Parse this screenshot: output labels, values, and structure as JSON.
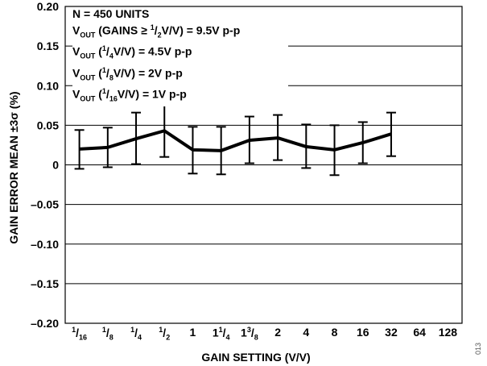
{
  "chart_data": {
    "type": "line",
    "ylabel": "GAIN ERROR MEAN ±3σ (%)",
    "xlabel": "GAIN SETTING (V/V)",
    "ylim": [
      -0.2,
      0.2
    ],
    "yticks": [
      "0.20",
      "0.15",
      "0.10",
      "0.05",
      "0",
      "–0.05",
      "–0.10",
      "–0.15",
      "–0.20"
    ],
    "categories": [
      {
        "num": "1",
        "den": "16"
      },
      {
        "num": "1",
        "den": "8"
      },
      {
        "num": "1",
        "den": "4"
      },
      {
        "num": "1",
        "den": "2"
      },
      {
        "whole": "1"
      },
      {
        "whole": "1",
        "num": "1",
        "den": "4"
      },
      {
        "whole": "1",
        "num": "3",
        "den": "8"
      },
      {
        "whole": "2"
      },
      {
        "whole": "4"
      },
      {
        "whole": "8"
      },
      {
        "whole": "16"
      },
      {
        "whole": "32"
      },
      {
        "whole": "64"
      },
      {
        "whole": "128"
      }
    ],
    "series": [
      {
        "mean": [
          0.02,
          0.022,
          0.033,
          0.043,
          0.019,
          0.018,
          0.031,
          0.034,
          0.023,
          0.019,
          0.028,
          0.039,
          null,
          null
        ],
        "upper": [
          0.044,
          0.047,
          0.066,
          0.075,
          0.048,
          0.048,
          0.061,
          0.063,
          0.051,
          0.05,
          0.054,
          0.066,
          null,
          null
        ],
        "lower": [
          -0.005,
          -0.003,
          0.001,
          0.01,
          -0.011,
          -0.012,
          0.002,
          0.006,
          -0.004,
          -0.013,
          0.002,
          0.011,
          null,
          null
        ]
      }
    ],
    "annotation": {
      "line1": "N = 450 UNITS",
      "line2_a": "V",
      "line2_b": "OUT",
      "line2_c": " (GAINS ≥ ",
      "line2_d": "1",
      "line2_e": "/",
      "line2_f": "2",
      "line2_g": "V/V) = 9.5V p-p",
      "line3_a": "V",
      "line3_b": "OUT",
      "line3_c": " (",
      "line3_d": "1",
      "line3_e": "/",
      "line3_f": "4",
      "line3_g": "V/V) = 4.5V p-p",
      "line4_a": "V",
      "line4_b": "OUT",
      "line4_c": " (",
      "line4_d": "1",
      "line4_e": "/",
      "line4_f": "8",
      "line4_g": "V/V) = 2V p-p",
      "line5_a": "V",
      "line5_b": "OUT",
      "line5_c": " (",
      "line5_d": "1",
      "line5_e": "/",
      "line5_f": "16",
      "line5_g": "V/V) = 1V p-p"
    },
    "grid": true,
    "figure_code": "013"
  }
}
